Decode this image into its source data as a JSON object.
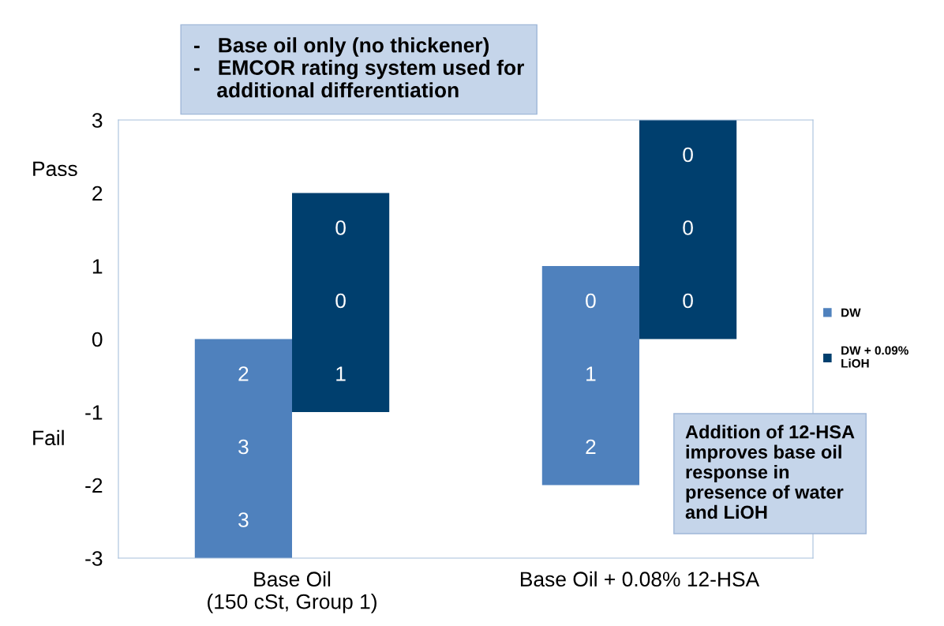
{
  "chart_data": {
    "type": "bar",
    "categories": [
      "Base Oil\n(150 cSt, Group 1)",
      "Base Oil + 0.08% 12-HSA"
    ],
    "series": [
      {
        "name": "DW",
        "color": "#4f81bd",
        "base": [
          0,
          -2
        ],
        "values": [
          -3,
          3
        ],
        "value_labels": [
          [
            "2",
            "3",
            "3"
          ],
          [
            "0",
            "1",
            "2"
          ]
        ]
      },
      {
        "name": "DW + 0.09%\nLiOH",
        "color": "#003f6e",
        "base": [
          -1,
          0
        ],
        "values": [
          3,
          3
        ],
        "value_labels": [
          [
            "0",
            "0",
            "1"
          ],
          [
            "0",
            "0",
            "0"
          ]
        ]
      }
    ],
    "ylim": [
      -3,
      3
    ],
    "yticks": [
      -3,
      -2,
      -1,
      0,
      1,
      2,
      3
    ],
    "annotations": [
      "Pass",
      "Fail",
      "-   Base oil only (no thickener)\n-   EMCOR rating system used for\n    additional differentiation",
      "Addition of 12-HSA\nimproves base oil\nresponse in\npresence of water\nand LiOH"
    ],
    "legend": "right",
    "grid": false
  }
}
